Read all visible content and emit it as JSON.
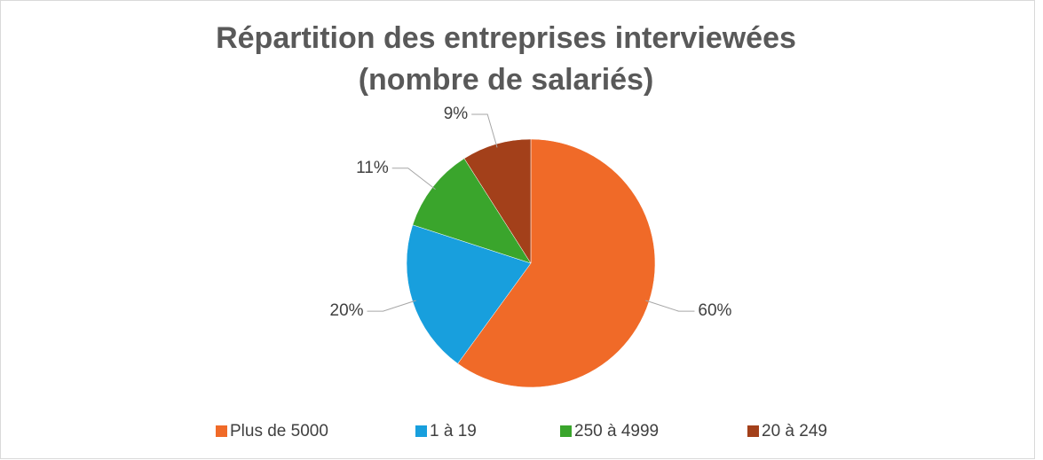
{
  "chart_data": {
    "type": "pie",
    "title": [
      "Répartition des entreprises interviewées",
      "(nombre de salariés)"
    ],
    "categories": [
      "Plus de 5000",
      "1 à 19",
      "250 à 4999",
      "20 à 249"
    ],
    "values": [
      60,
      20,
      11,
      9
    ],
    "value_labels": [
      "60%",
      "20%",
      "11%",
      "9%"
    ],
    "colors": [
      "#f06a28",
      "#189fdd",
      "#3aa52c",
      "#a3401a"
    ],
    "legend": "bottom"
  }
}
